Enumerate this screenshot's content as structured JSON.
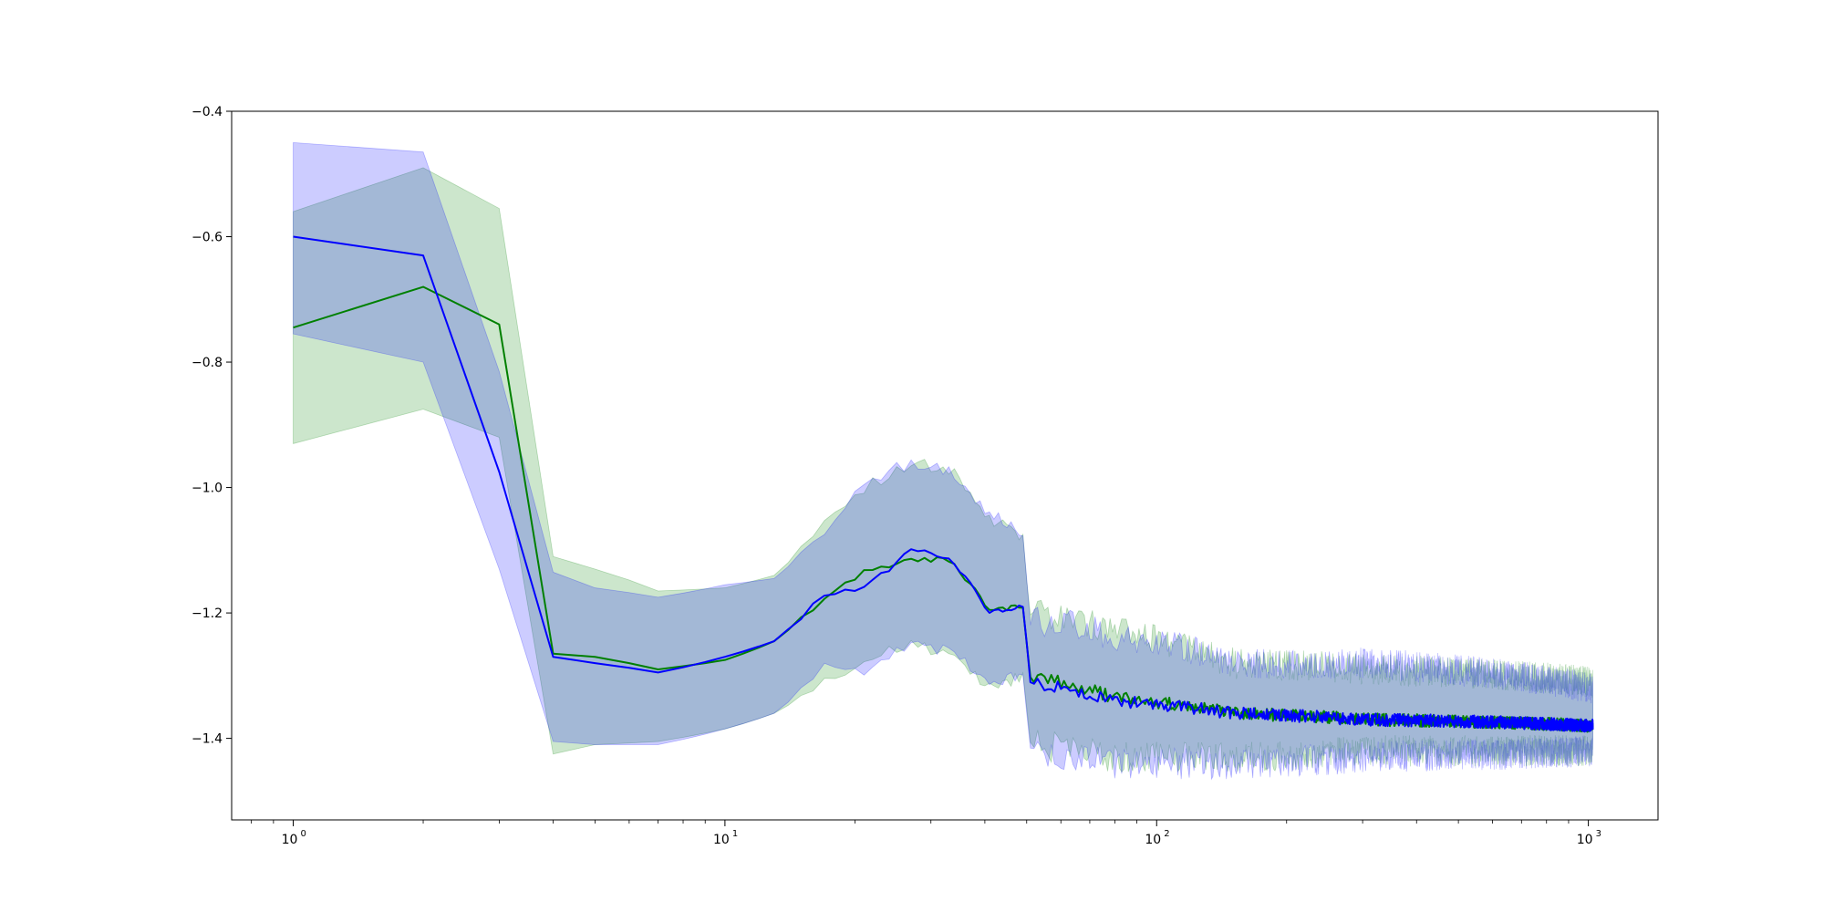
{
  "chart_data": {
    "type": "line",
    "title": "",
    "xlabel": "",
    "ylabel": "",
    "x_scale": "log",
    "xlim": [
      0.72,
      1450
    ],
    "ylim": [
      -1.53,
      -0.4
    ],
    "grid": false,
    "legend": "none",
    "y_ticks": [
      -0.4,
      -0.6,
      -0.8,
      -1.0,
      -1.2,
      -1.4
    ],
    "y_tick_labels": [
      "−0.4",
      "−0.6",
      "−0.8",
      "−1.0",
      "−1.2",
      "−1.4"
    ],
    "x_ticks": [
      1,
      10,
      100,
      1000
    ],
    "x_tick_labels": [
      {
        "base": "10",
        "exp": "0"
      },
      {
        "base": "10",
        "exp": "1"
      },
      {
        "base": "10",
        "exp": "2"
      },
      {
        "base": "10",
        "exp": "3"
      }
    ],
    "x_max": 1024,
    "series": [
      {
        "color": "#008000",
        "band_color": "#008000",
        "band_opacity": 0.2,
        "anchors": [
          [
            1,
            -0.745,
            -0.56,
            -0.93
          ],
          [
            2,
            -0.68,
            -0.49,
            -0.875
          ],
          [
            3,
            -0.74,
            -0.555,
            -0.92
          ],
          [
            4,
            -1.265,
            -1.11,
            -1.425
          ],
          [
            5,
            -1.27,
            -1.13,
            -1.41
          ],
          [
            7,
            -1.29,
            -1.165,
            -1.405
          ],
          [
            10,
            -1.275,
            -1.16,
            -1.385
          ],
          [
            13,
            -1.245,
            -1.14,
            -1.36
          ],
          [
            17,
            -1.175,
            -1.06,
            -1.31
          ],
          [
            21,
            -1.135,
            -1.0,
            -1.27
          ],
          [
            27,
            -1.115,
            -0.96,
            -1.25
          ],
          [
            33,
            -1.115,
            -0.97,
            -1.27
          ],
          [
            41,
            -1.195,
            -1.05,
            -1.32
          ],
          [
            49,
            -1.19,
            -1.08,
            -1.3
          ],
          [
            51,
            -1.3,
            -1.2,
            -1.41
          ],
          [
            80,
            -1.335,
            -1.23,
            -1.43
          ],
          [
            150,
            -1.36,
            -1.28,
            -1.43
          ],
          [
            300,
            -1.37,
            -1.29,
            -1.42
          ],
          [
            1024,
            -1.38,
            -1.31,
            -1.42
          ]
        ]
      },
      {
        "color": "#0000ff",
        "band_color": "#0000ff",
        "band_opacity": 0.2,
        "anchors": [
          [
            1,
            -0.6,
            -0.45,
            -0.755
          ],
          [
            2,
            -0.63,
            -0.465,
            -0.8
          ],
          [
            3,
            -0.975,
            -0.815,
            -1.13
          ],
          [
            4,
            -1.27,
            -1.135,
            -1.405
          ],
          [
            5,
            -1.28,
            -1.16,
            -1.41
          ],
          [
            7,
            -1.295,
            -1.175,
            -1.41
          ],
          [
            10,
            -1.27,
            -1.155,
            -1.385
          ],
          [
            13,
            -1.245,
            -1.145,
            -1.36
          ],
          [
            17,
            -1.17,
            -1.07,
            -1.29
          ],
          [
            21,
            -1.16,
            -0.99,
            -1.29
          ],
          [
            27,
            -1.1,
            -0.96,
            -1.25
          ],
          [
            33,
            -1.11,
            -0.975,
            -1.26
          ],
          [
            41,
            -1.2,
            -1.04,
            -1.31
          ],
          [
            49,
            -1.19,
            -1.07,
            -1.3
          ],
          [
            51,
            -1.31,
            -1.21,
            -1.42
          ],
          [
            80,
            -1.34,
            -1.235,
            -1.44
          ],
          [
            150,
            -1.36,
            -1.28,
            -1.44
          ],
          [
            300,
            -1.37,
            -1.28,
            -1.43
          ],
          [
            1024,
            -1.38,
            -1.32,
            -1.42
          ]
        ]
      }
    ]
  }
}
